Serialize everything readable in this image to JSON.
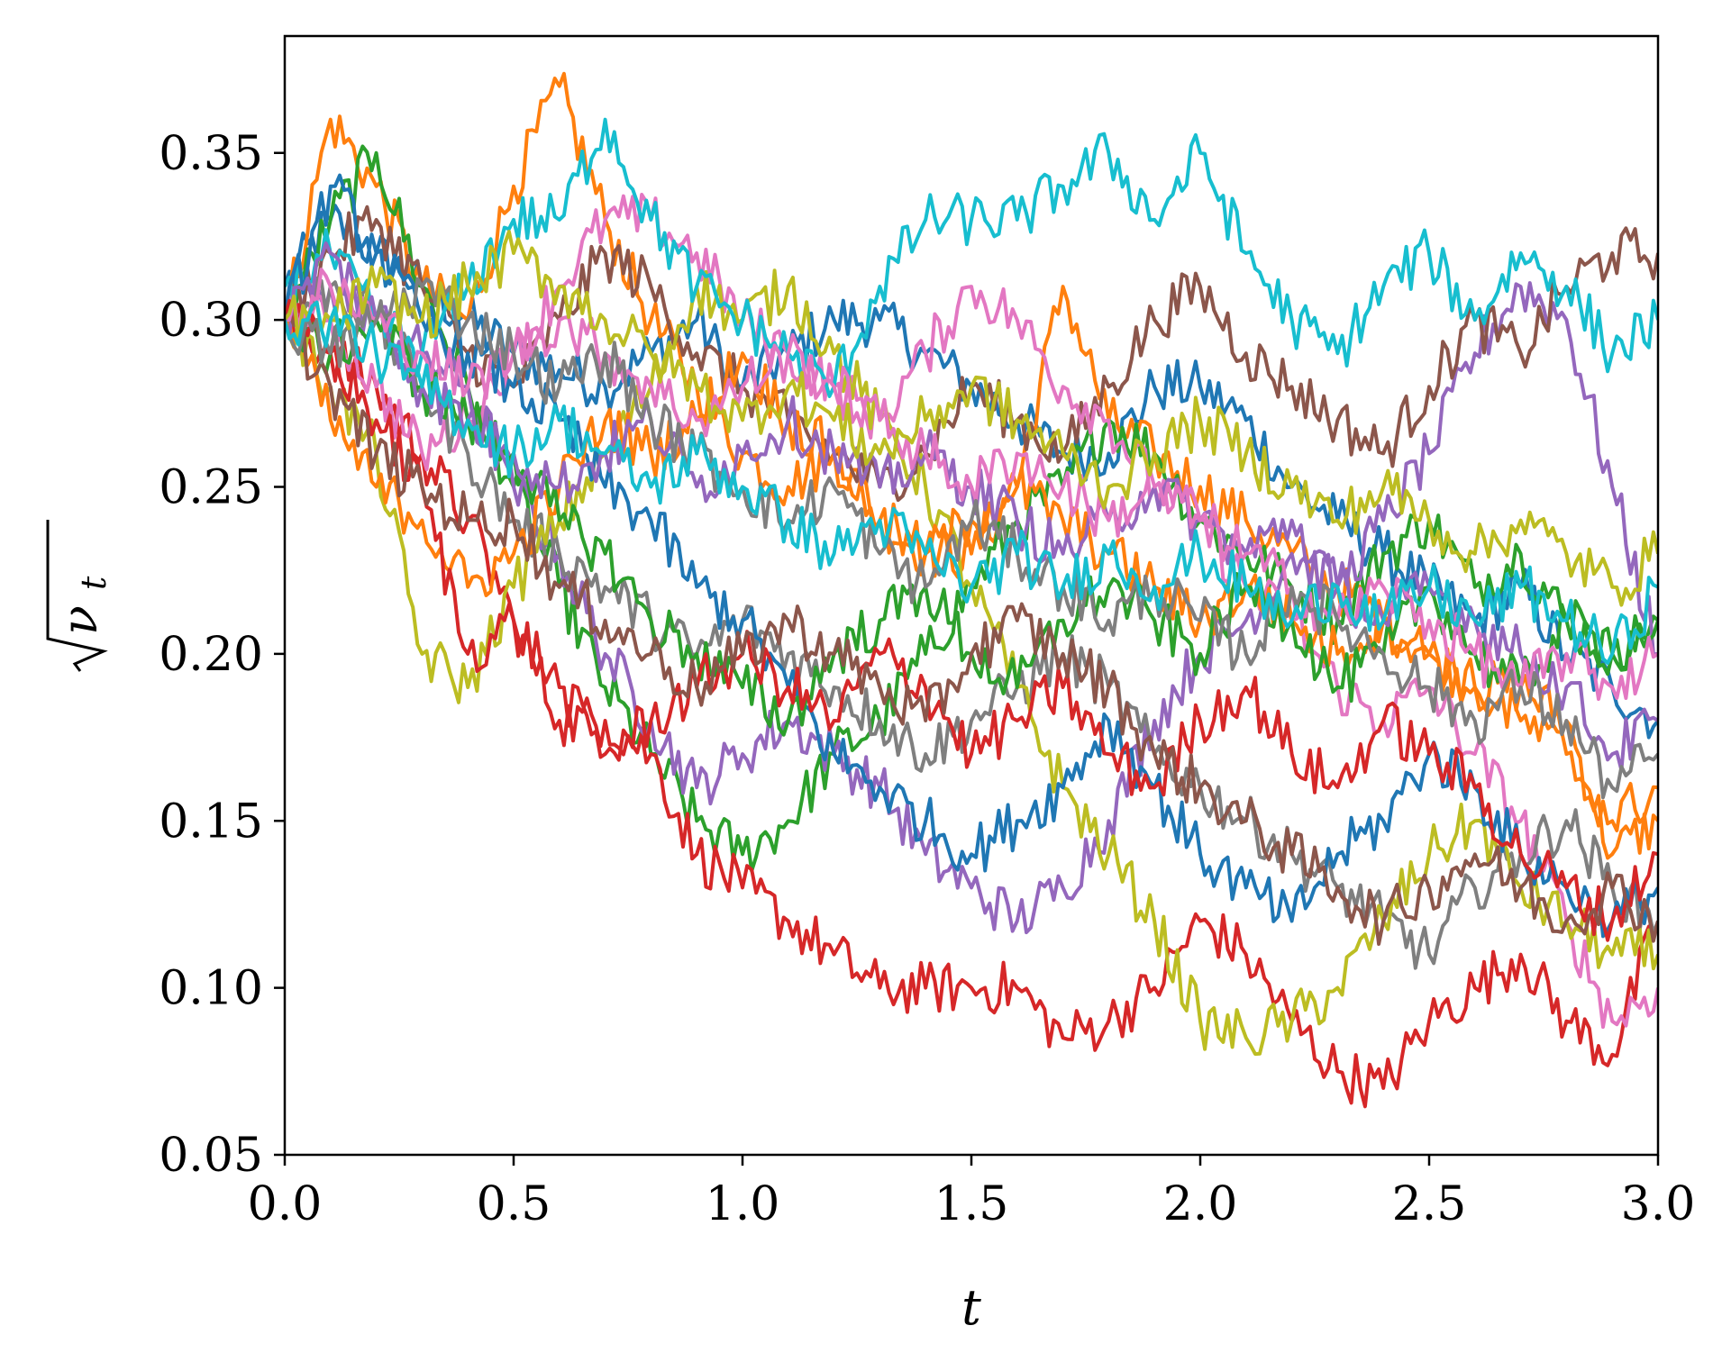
{
  "chart_data": {
    "type": "line",
    "title": "",
    "xlabel": "t",
    "ylabel_main": "ν",
    "ylabel_sub": "t",
    "xlim": [
      0.0,
      3.0
    ],
    "ylim": [
      0.05,
      0.385
    ],
    "xticks": [
      {
        "value": 0.0,
        "label": "0.0"
      },
      {
        "value": 0.5,
        "label": "0.5"
      },
      {
        "value": 1.0,
        "label": "1.0"
      },
      {
        "value": 1.5,
        "label": "1.5"
      },
      {
        "value": 2.0,
        "label": "2.0"
      },
      {
        "value": 2.5,
        "label": "2.5"
      },
      {
        "value": 3.0,
        "label": "3.0"
      }
    ],
    "yticks": [
      {
        "value": 0.05,
        "label": "0.05"
      },
      {
        "value": 0.1,
        "label": "0.10"
      },
      {
        "value": 0.15,
        "label": "0.15"
      },
      {
        "value": 0.2,
        "label": "0.20"
      },
      {
        "value": 0.25,
        "label": "0.25"
      },
      {
        "value": 0.3,
        "label": "0.30"
      },
      {
        "value": 0.35,
        "label": "0.35"
      }
    ],
    "grid": false,
    "legend": "none",
    "colors": [
      "#1f77b4",
      "#ff7f0e",
      "#2ca02c",
      "#d62728",
      "#9467bd",
      "#8c564b",
      "#e377c2",
      "#7f7f7f",
      "#bcbd22",
      "#17becf"
    ],
    "x": [
      0.0,
      0.1,
      0.2,
      0.3,
      0.4,
      0.5,
      0.6,
      0.7,
      0.8,
      0.9,
      1.0,
      1.1,
      1.2,
      1.3,
      1.4,
      1.5,
      1.6,
      1.7,
      1.8,
      1.9,
      2.0,
      2.1,
      2.2,
      2.3,
      2.4,
      2.5,
      2.6,
      2.7,
      2.8,
      2.9,
      3.0
    ],
    "series": [
      {
        "values": [
          0.31,
          0.33,
          0.32,
          0.31,
          0.3,
          0.29,
          0.285,
          0.28,
          0.29,
          0.3,
          0.28,
          0.29,
          0.3,
          0.3,
          0.29,
          0.28,
          0.27,
          0.26,
          0.26,
          0.28,
          0.28,
          0.27,
          0.25,
          0.24,
          0.23,
          0.22,
          0.21,
          0.22,
          0.2,
          0.19,
          0.18
        ]
      },
      {
        "values": [
          0.3,
          0.36,
          0.34,
          0.31,
          0.3,
          0.34,
          0.37,
          0.33,
          0.3,
          0.28,
          0.26,
          0.25,
          0.26,
          0.24,
          0.23,
          0.23,
          0.25,
          0.31,
          0.27,
          0.26,
          0.25,
          0.24,
          0.23,
          0.22,
          0.21,
          0.2,
          0.19,
          0.19,
          0.18,
          0.14,
          0.15
        ]
      },
      {
        "values": [
          0.3,
          0.33,
          0.35,
          0.31,
          0.28,
          0.25,
          0.22,
          0.19,
          0.17,
          0.15,
          0.14,
          0.15,
          0.17,
          0.18,
          0.2,
          0.22,
          0.24,
          0.25,
          0.27,
          0.26,
          0.24,
          0.23,
          0.22,
          0.21,
          0.23,
          0.24,
          0.22,
          0.23,
          0.21,
          0.2,
          0.21
        ]
      },
      {
        "values": [
          0.3,
          0.29,
          0.28,
          0.26,
          0.24,
          0.21,
          0.18,
          0.18,
          0.17,
          0.14,
          0.13,
          0.12,
          0.11,
          0.1,
          0.1,
          0.1,
          0.1,
          0.085,
          0.09,
          0.1,
          0.12,
          0.11,
          0.09,
          0.075,
          0.07,
          0.09,
          0.1,
          0.11,
          0.09,
          0.08,
          0.12
        ]
      },
      {
        "values": [
          0.3,
          0.31,
          0.3,
          0.29,
          0.28,
          0.25,
          0.23,
          0.2,
          0.18,
          0.16,
          0.17,
          0.18,
          0.17,
          0.16,
          0.14,
          0.13,
          0.12,
          0.13,
          0.15,
          0.18,
          0.2,
          0.21,
          0.23,
          0.22,
          0.24,
          0.26,
          0.29,
          0.31,
          0.3,
          0.25,
          0.2
        ]
      },
      {
        "values": [
          0.3,
          0.32,
          0.33,
          0.31,
          0.29,
          0.28,
          0.3,
          0.32,
          0.31,
          0.29,
          0.28,
          0.27,
          0.26,
          0.25,
          0.26,
          0.28,
          0.27,
          0.26,
          0.28,
          0.3,
          0.31,
          0.29,
          0.28,
          0.27,
          0.26,
          0.28,
          0.3,
          0.29,
          0.31,
          0.32,
          0.32
        ]
      },
      {
        "values": [
          0.3,
          0.3,
          0.28,
          0.26,
          0.27,
          0.29,
          0.31,
          0.33,
          0.33,
          0.32,
          0.3,
          0.29,
          0.28,
          0.27,
          0.29,
          0.31,
          0.3,
          0.28,
          0.27,
          0.25,
          0.24,
          0.22,
          0.21,
          0.19,
          0.18,
          0.19,
          0.17,
          0.15,
          0.12,
          0.09,
          0.1
        ]
      },
      {
        "values": [
          0.3,
          0.31,
          0.3,
          0.28,
          0.26,
          0.24,
          0.23,
          0.22,
          0.21,
          0.2,
          0.21,
          0.2,
          0.19,
          0.18,
          0.17,
          0.18,
          0.19,
          0.2,
          0.19,
          0.17,
          0.16,
          0.15,
          0.14,
          0.13,
          0.12,
          0.11,
          0.13,
          0.14,
          0.15,
          0.13,
          0.12
        ]
      },
      {
        "values": [
          0.3,
          0.28,
          0.26,
          0.2,
          0.19,
          0.22,
          0.24,
          0.26,
          0.28,
          0.31,
          0.3,
          0.31,
          0.29,
          0.27,
          0.25,
          0.22,
          0.19,
          0.16,
          0.14,
          0.12,
          0.09,
          0.085,
          0.09,
          0.1,
          0.12,
          0.14,
          0.15,
          0.13,
          0.12,
          0.11,
          0.11
        ]
      },
      {
        "values": [
          0.31,
          0.32,
          0.3,
          0.29,
          0.31,
          0.33,
          0.33,
          0.36,
          0.33,
          0.31,
          0.3,
          0.29,
          0.28,
          0.31,
          0.33,
          0.33,
          0.33,
          0.34,
          0.35,
          0.33,
          0.35,
          0.32,
          0.3,
          0.29,
          0.31,
          0.32,
          0.3,
          0.32,
          0.31,
          0.29,
          0.3
        ]
      },
      {
        "values": [
          0.3,
          0.34,
          0.32,
          0.3,
          0.29,
          0.28,
          0.27,
          0.25,
          0.24,
          0.22,
          0.21,
          0.19,
          0.17,
          0.16,
          0.15,
          0.14,
          0.15,
          0.16,
          0.18,
          0.16,
          0.14,
          0.13,
          0.12,
          0.14,
          0.15,
          0.17,
          0.16,
          0.14,
          0.13,
          0.12,
          0.13
        ]
      },
      {
        "values": [
          0.3,
          0.27,
          0.25,
          0.24,
          0.22,
          0.23,
          0.25,
          0.27,
          0.26,
          0.27,
          0.29,
          0.27,
          0.26,
          0.24,
          0.23,
          0.24,
          0.25,
          0.24,
          0.23,
          0.22,
          0.21,
          0.22,
          0.21,
          0.2,
          0.21,
          0.2,
          0.19,
          0.18,
          0.17,
          0.15,
          0.16
        ]
      },
      {
        "values": [
          0.3,
          0.29,
          0.3,
          0.28,
          0.27,
          0.26,
          0.24,
          0.23,
          0.21,
          0.2,
          0.19,
          0.18,
          0.2,
          0.21,
          0.22,
          0.2,
          0.19,
          0.21,
          0.22,
          0.21,
          0.2,
          0.22,
          0.21,
          0.19,
          0.2,
          0.22,
          0.2,
          0.19,
          0.21,
          0.2,
          0.21
        ]
      },
      {
        "values": [
          0.3,
          0.29,
          0.27,
          0.25,
          0.2,
          0.21,
          0.19,
          0.17,
          0.18,
          0.19,
          0.2,
          0.19,
          0.18,
          0.2,
          0.19,
          0.17,
          0.18,
          0.19,
          0.17,
          0.16,
          0.18,
          0.19,
          0.17,
          0.16,
          0.18,
          0.17,
          0.16,
          0.14,
          0.13,
          0.12,
          0.14
        ]
      },
      {
        "values": [
          0.3,
          0.32,
          0.3,
          0.28,
          0.27,
          0.26,
          0.25,
          0.26,
          0.27,
          0.25,
          0.26,
          0.27,
          0.26,
          0.25,
          0.26,
          0.25,
          0.24,
          0.23,
          0.24,
          0.25,
          0.24,
          0.23,
          0.24,
          0.22,
          0.21,
          0.22,
          0.21,
          0.2,
          0.19,
          0.17,
          0.18
        ]
      },
      {
        "values": [
          0.3,
          0.28,
          0.26,
          0.25,
          0.24,
          0.24,
          0.22,
          0.21,
          0.2,
          0.19,
          0.2,
          0.21,
          0.2,
          0.19,
          0.18,
          0.2,
          0.21,
          0.2,
          0.19,
          0.17,
          0.16,
          0.15,
          0.14,
          0.13,
          0.12,
          0.13,
          0.14,
          0.13,
          0.12,
          0.13,
          0.12
        ]
      },
      {
        "values": [
          0.3,
          0.31,
          0.3,
          0.29,
          0.28,
          0.29,
          0.3,
          0.29,
          0.28,
          0.27,
          0.28,
          0.29,
          0.28,
          0.27,
          0.26,
          0.25,
          0.26,
          0.25,
          0.24,
          0.25,
          0.24,
          0.23,
          0.22,
          0.21,
          0.22,
          0.21,
          0.2,
          0.19,
          0.2,
          0.19,
          0.2
        ]
      },
      {
        "values": [
          0.3,
          0.29,
          0.3,
          0.31,
          0.3,
          0.29,
          0.28,
          0.29,
          0.27,
          0.26,
          0.25,
          0.24,
          0.25,
          0.23,
          0.22,
          0.24,
          0.23,
          0.22,
          0.21,
          0.22,
          0.21,
          0.2,
          0.22,
          0.21,
          0.2,
          0.19,
          0.18,
          0.19,
          0.18,
          0.16,
          0.17
        ]
      },
      {
        "values": [
          0.3,
          0.3,
          0.31,
          0.3,
          0.31,
          0.32,
          0.31,
          0.3,
          0.29,
          0.28,
          0.27,
          0.28,
          0.27,
          0.26,
          0.27,
          0.28,
          0.27,
          0.26,
          0.25,
          0.26,
          0.27,
          0.26,
          0.25,
          0.24,
          0.25,
          0.24,
          0.23,
          0.24,
          0.23,
          0.22,
          0.23
        ]
      },
      {
        "values": [
          0.3,
          0.3,
          0.29,
          0.28,
          0.27,
          0.26,
          0.27,
          0.26,
          0.25,
          0.26,
          0.25,
          0.24,
          0.23,
          0.24,
          0.23,
          0.22,
          0.23,
          0.22,
          0.23,
          0.22,
          0.23,
          0.22,
          0.21,
          0.22,
          0.21,
          0.22,
          0.21,
          0.22,
          0.21,
          0.2,
          0.22
        ]
      }
    ]
  }
}
